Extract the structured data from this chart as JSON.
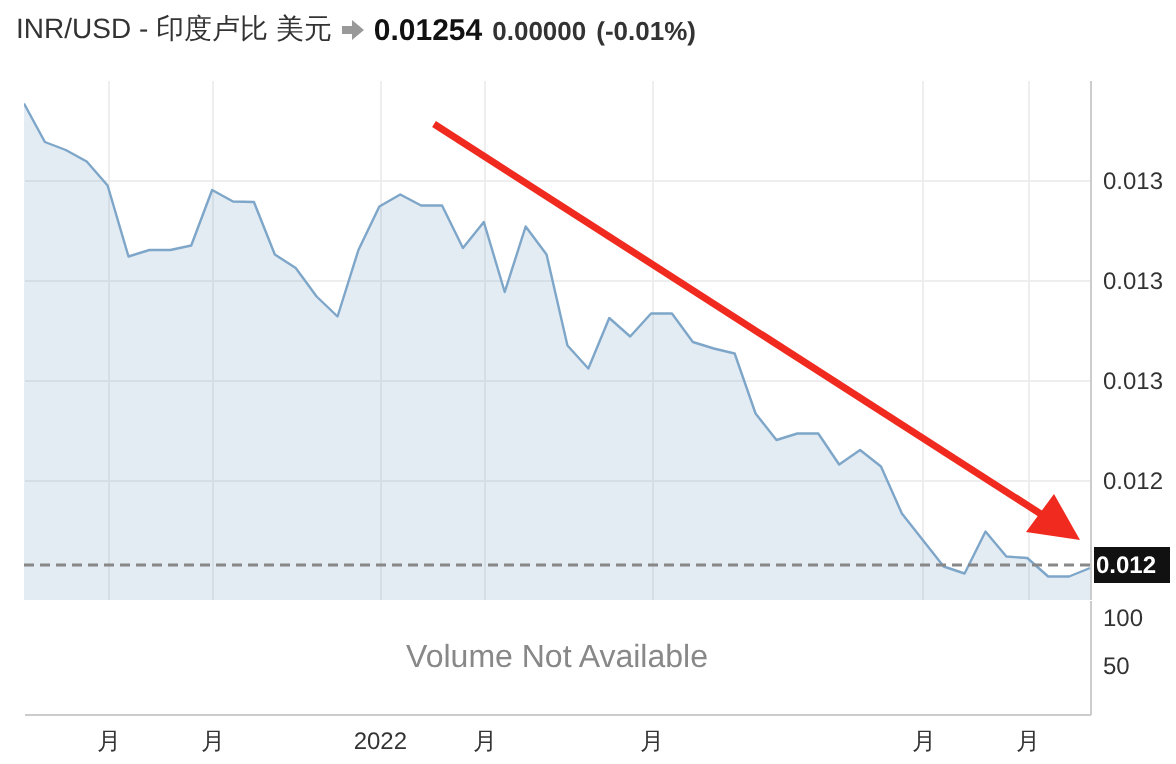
{
  "chart_data": [
    {
      "type": "area",
      "title": "INR/USD - 印度卢比 美元",
      "annotations": [
        "0.01254",
        "0.00000",
        "(-0.01%)"
      ],
      "categories": [
        null,
        null,
        null,
        null,
        "月",
        null,
        null,
        null,
        null,
        "月",
        null,
        null,
        null,
        null,
        null,
        null,
        null,
        "2022",
        null,
        null,
        null,
        null,
        "月",
        null,
        null,
        null,
        null,
        null,
        null,
        null,
        "月",
        null,
        null,
        null,
        null,
        null,
        null,
        null,
        null,
        null,
        null,
        null,
        null,
        "月",
        null,
        null,
        null,
        null,
        "月",
        null,
        null,
        null
      ],
      "series": [
        {
          "color": "#7ea6c9",
          "values": [
            0.0125653,
            0.0125576,
            0.012556,
            0.0125537,
            0.0125489,
            0.0125347,
            0.012536,
            0.012536,
            0.0125369,
            0.012548,
            0.0125457,
            0.0125456,
            0.0125351,
            0.0125324,
            0.0125267,
            0.0125227,
            0.012536,
            0.0125447,
            0.0125471,
            0.0125449,
            0.0125449,
            0.0125364,
            0.0125416,
            0.0125276,
            0.0125407,
            0.0125351,
            0.0125169,
            0.0125123,
            0.0125224,
            0.0125187,
            0.0125233,
            0.0125233,
            0.0125176,
            0.0125163,
            0.0125153,
            0.0125033,
            0.012498,
            0.0124993,
            0.0124993,
            0.0124931,
            0.012496,
            0.0124927,
            0.0124833,
            0.012478,
            0.0124727,
            0.0124713,
            0.0124797,
            0.0124747,
            0.0124744,
            0.0124707,
            0.0124707,
            0.0124724
          ]
        }
      ],
      "ylim": [
        0.012466,
        0.01257
      ],
      "yticks": [
        {
          "value": 0.01249,
          "label": "0.012"
        },
        {
          "value": 0.01251,
          "label": "0.013"
        },
        {
          "value": 0.01253,
          "label": "0.013"
        },
        {
          "value": 0.01255,
          "label": "0.013"
        }
      ],
      "ref_lines": [
        {
          "axis": "y",
          "value": 0.012473,
          "label": "0.012",
          "color": "#888888",
          "line_style": "dashed"
        }
      ],
      "grid": true
    },
    {
      "type": "bar",
      "annotations": [
        "Volume Not Available"
      ],
      "categories": [
        null,
        null,
        null,
        null,
        null,
        null,
        null,
        null,
        null,
        null,
        null,
        null,
        null,
        null,
        null,
        null,
        null,
        null,
        null,
        null,
        null,
        null,
        null,
        null,
        null,
        null,
        null,
        null,
        null,
        null,
        null,
        null,
        null,
        null,
        null,
        null,
        null,
        null,
        null,
        null,
        null,
        null,
        null,
        null,
        null,
        null,
        null,
        null,
        null,
        null,
        null,
        null
      ],
      "values": [
        null,
        null,
        null,
        null,
        null,
        null,
        null,
        null,
        null,
        null,
        null,
        null,
        null,
        null,
        null,
        null,
        null,
        null,
        null,
        null,
        null,
        null,
        null,
        null,
        null,
        null,
        null,
        null,
        null,
        null,
        null,
        null,
        null,
        null,
        null,
        null,
        null,
        null,
        null,
        null,
        null,
        null,
        null,
        null,
        null,
        null,
        null,
        null,
        null,
        null,
        null,
        null
      ],
      "ylim": [
        0,
        117
      ],
      "yticks": [
        50,
        100
      ],
      "tick_labels": "y"
    }
  ]
}
